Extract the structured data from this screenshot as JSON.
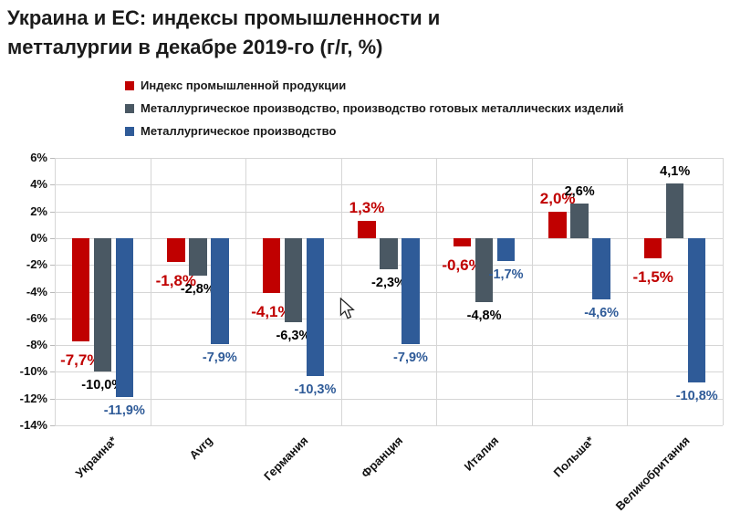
{
  "title": {
    "line1": "Украина и ЕС: индексы промышленности и",
    "line2": "метталургии в декабре 2019-го (г/г, %)"
  },
  "legend": {
    "items": [
      {
        "label": "Индекс промышленной продукции",
        "color": "#C00000"
      },
      {
        "label": "Металлургическое производство, производство готовых металлических изделий",
        "color": "#4A5863"
      },
      {
        "label": "Металлургическое производство",
        "color": "#2F5B98"
      }
    ]
  },
  "chart_data": {
    "type": "bar",
    "title": "Украина и ЕС: индексы промышленности и метталургии в декабре 2019-го (г/г, %)",
    "categories": [
      "Украина*",
      "Avrg",
      "Германия",
      "Франция",
      "Италия",
      "Польша*",
      "Великобритания"
    ],
    "series": [
      {
        "name": "Индекс промышленной продукции",
        "color": "#C00000",
        "label_color": "#C00000",
        "label_size": 17,
        "values": [
          -7.7,
          -1.8,
          -4.1,
          1.3,
          -0.6,
          2.0,
          -1.5
        ],
        "labels": [
          "-7,7%",
          "-1,8%",
          "-4,1%",
          "1,3%",
          "-0,6%",
          "2,0%",
          "-1,5%"
        ]
      },
      {
        "name": "Металлургическое производство, производство готовых металлических изделий",
        "color": "#4A5863",
        "label_color": "#000000",
        "label_size": 14.5,
        "values": [
          -10.0,
          -2.8,
          -6.3,
          -2.3,
          -4.8,
          2.6,
          4.1
        ],
        "labels": [
          "-10,0%",
          "-2,8%",
          "-6,3%",
          "-2,3%",
          "-4,8%",
          "2,6%",
          "4,1%"
        ]
      },
      {
        "name": "Металлургическое производство",
        "color": "#2F5B98",
        "label_color": "#2F5B98",
        "label_size": 14.5,
        "values": [
          -11.9,
          -7.9,
          -10.3,
          -7.9,
          -1.7,
          -4.6,
          -10.8
        ],
        "labels": [
          "-11,9%",
          "-7,9%",
          "-10,3%",
          "-7,9%",
          "-1,7%",
          "-4,6%",
          "-10,8%"
        ]
      }
    ],
    "yticks": [
      "6%",
      "4%",
      "2%",
      "0%",
      "-2%",
      "-4%",
      "-6%",
      "-8%",
      "-10%",
      "-12%",
      "-14%"
    ],
    "ylim": [
      -14,
      6
    ],
    "xlabel": "",
    "ylabel": "",
    "grid": true,
    "legend_position": "top"
  },
  "cursor": {
    "name": "mouse-pointer"
  }
}
